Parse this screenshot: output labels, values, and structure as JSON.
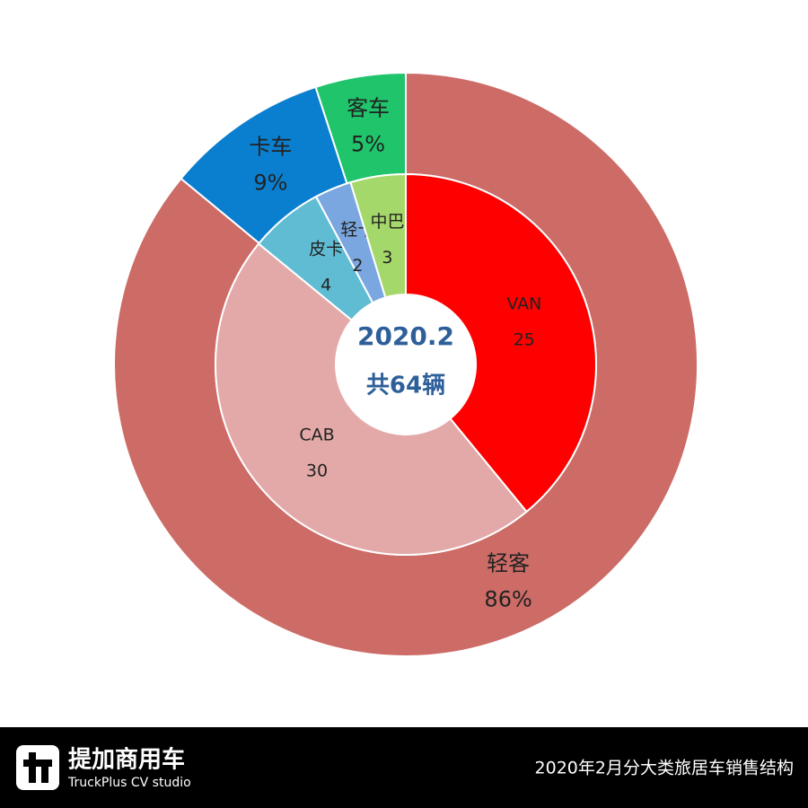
{
  "chart_data": {
    "type": "nested-donut",
    "outer": {
      "categories": [
        "轻客",
        "卡车",
        "客车"
      ],
      "values": [
        86,
        9,
        5
      ],
      "value_labels": [
        "86%",
        "9%",
        "5%"
      ],
      "colors": [
        "#cd6b66",
        "#0a7fcf",
        "#1fc46b"
      ]
    },
    "inner": {
      "categories": [
        "VAN",
        "CAB",
        "皮卡",
        "轻卡",
        "中巴"
      ],
      "values": [
        25,
        30,
        4,
        2,
        3
      ],
      "colors": [
        "#ff0000",
        "#e3a9a8",
        "#5fbcd3",
        "#7ba7e0",
        "#a5d86a"
      ]
    },
    "center_text": [
      "2020.2",
      "共64辆"
    ]
  },
  "footer": {
    "brand": "提加商用车",
    "brand_en": "TruckPlus CV studio",
    "caption": "2020年2月分大类旅居车销售结构"
  }
}
